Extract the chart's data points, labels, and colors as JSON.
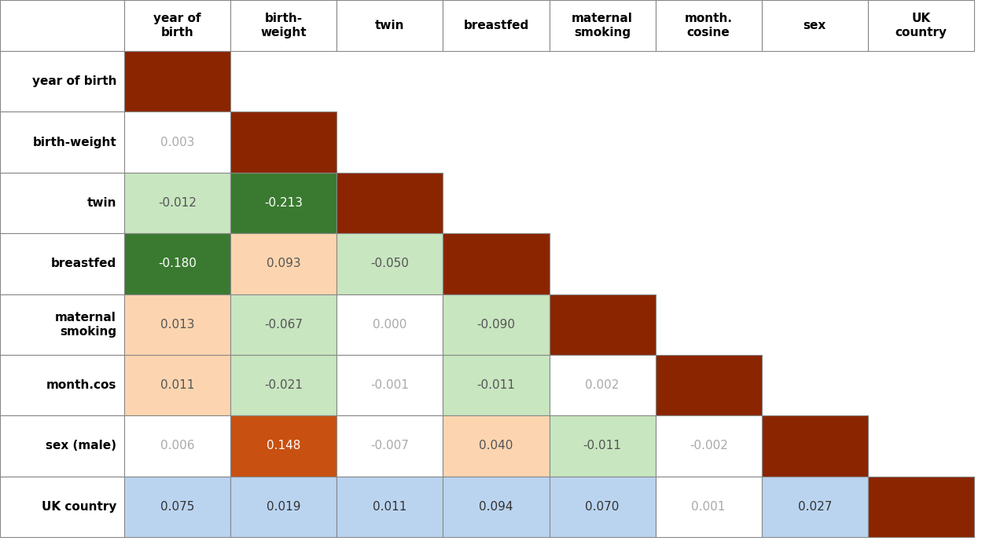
{
  "col_headers": [
    "year of\nbirth",
    "birth-\nweight",
    "twin",
    "breastfed",
    "maternal\nsmoking",
    "month.\ncosine",
    "sex",
    "UK\ncountry"
  ],
  "row_headers": [
    "year of birth",
    "birth-weight",
    "twin",
    "breastfed",
    "maternal\nsmoking",
    "month.cos",
    "sex (male)",
    "UK country"
  ],
  "n_rows": 8,
  "n_cols": 8,
  "cells": [
    {
      "row": 0,
      "col": 0,
      "value": null,
      "bg": "#8B2500",
      "text_color": "white"
    },
    {
      "row": 1,
      "col": 0,
      "value": "0.003",
      "bg": "white",
      "text_color": "#aaaaaa"
    },
    {
      "row": 1,
      "col": 1,
      "value": null,
      "bg": "#8B2500",
      "text_color": "white"
    },
    {
      "row": 2,
      "col": 0,
      "value": "-0.012",
      "bg": "#c8e6c0",
      "text_color": "#555555"
    },
    {
      "row": 2,
      "col": 1,
      "value": "-0.213",
      "bg": "#3a7a30",
      "text_color": "white"
    },
    {
      "row": 2,
      "col": 2,
      "value": null,
      "bg": "#8B2500",
      "text_color": "white"
    },
    {
      "row": 3,
      "col": 0,
      "value": "-0.180",
      "bg": "#3a7a30",
      "text_color": "white"
    },
    {
      "row": 3,
      "col": 1,
      "value": "0.093",
      "bg": "#fcd5b0",
      "text_color": "#555555"
    },
    {
      "row": 3,
      "col": 2,
      "value": "-0.050",
      "bg": "#c8e6c0",
      "text_color": "#555555"
    },
    {
      "row": 3,
      "col": 3,
      "value": null,
      "bg": "#8B2500",
      "text_color": "white"
    },
    {
      "row": 4,
      "col": 0,
      "value": "0.013",
      "bg": "#fcd5b0",
      "text_color": "#555555"
    },
    {
      "row": 4,
      "col": 1,
      "value": "-0.067",
      "bg": "#c8e6c0",
      "text_color": "#555555"
    },
    {
      "row": 4,
      "col": 2,
      "value": "0.000",
      "bg": "white",
      "text_color": "#aaaaaa"
    },
    {
      "row": 4,
      "col": 3,
      "value": "-0.090",
      "bg": "#c8e6c0",
      "text_color": "#555555"
    },
    {
      "row": 4,
      "col": 4,
      "value": null,
      "bg": "#8B2500",
      "text_color": "white"
    },
    {
      "row": 5,
      "col": 0,
      "value": "0.011",
      "bg": "#fcd5b0",
      "text_color": "#555555"
    },
    {
      "row": 5,
      "col": 1,
      "value": "-0.021",
      "bg": "#c8e6c0",
      "text_color": "#555555"
    },
    {
      "row": 5,
      "col": 2,
      "value": "-0.001",
      "bg": "white",
      "text_color": "#aaaaaa"
    },
    {
      "row": 5,
      "col": 3,
      "value": "-0.011",
      "bg": "#c8e6c0",
      "text_color": "#555555"
    },
    {
      "row": 5,
      "col": 4,
      "value": "0.002",
      "bg": "white",
      "text_color": "#aaaaaa"
    },
    {
      "row": 5,
      "col": 5,
      "value": null,
      "bg": "#8B2500",
      "text_color": "white"
    },
    {
      "row": 6,
      "col": 0,
      "value": "0.006",
      "bg": "white",
      "text_color": "#aaaaaa"
    },
    {
      "row": 6,
      "col": 1,
      "value": "0.148",
      "bg": "#c85010",
      "text_color": "white"
    },
    {
      "row": 6,
      "col": 2,
      "value": "-0.007",
      "bg": "white",
      "text_color": "#aaaaaa"
    },
    {
      "row": 6,
      "col": 3,
      "value": "0.040",
      "bg": "#fcd5b0",
      "text_color": "#555555"
    },
    {
      "row": 6,
      "col": 4,
      "value": "-0.011",
      "bg": "#c8e6c0",
      "text_color": "#555555"
    },
    {
      "row": 6,
      "col": 5,
      "value": "-0.002",
      "bg": "white",
      "text_color": "#aaaaaa"
    },
    {
      "row": 6,
      "col": 6,
      "value": null,
      "bg": "#8B2500",
      "text_color": "white"
    },
    {
      "row": 7,
      "col": 0,
      "value": "0.075",
      "bg": "#bad4f0",
      "text_color": "#333333"
    },
    {
      "row": 7,
      "col": 1,
      "value": "0.019",
      "bg": "#bad4f0",
      "text_color": "#333333"
    },
    {
      "row": 7,
      "col": 2,
      "value": "0.011",
      "bg": "#bad4f0",
      "text_color": "#333333"
    },
    {
      "row": 7,
      "col": 3,
      "value": "0.094",
      "bg": "#bad4f0",
      "text_color": "#333333"
    },
    {
      "row": 7,
      "col": 4,
      "value": "0.070",
      "bg": "#bad4f0",
      "text_color": "#333333"
    },
    {
      "row": 7,
      "col": 5,
      "value": "0.001",
      "bg": "white",
      "text_color": "#aaaaaa"
    },
    {
      "row": 7,
      "col": 6,
      "value": "0.027",
      "bg": "#bad4f0",
      "text_color": "#333333"
    },
    {
      "row": 7,
      "col": 7,
      "value": null,
      "bg": "#8B2500",
      "text_color": "white"
    }
  ],
  "border_color": "#888888",
  "figsize": [
    12.49,
    6.89
  ],
  "dpi": 100,
  "font_size_header": 11,
  "font_size_cell": 11,
  "font_size_row": 11
}
